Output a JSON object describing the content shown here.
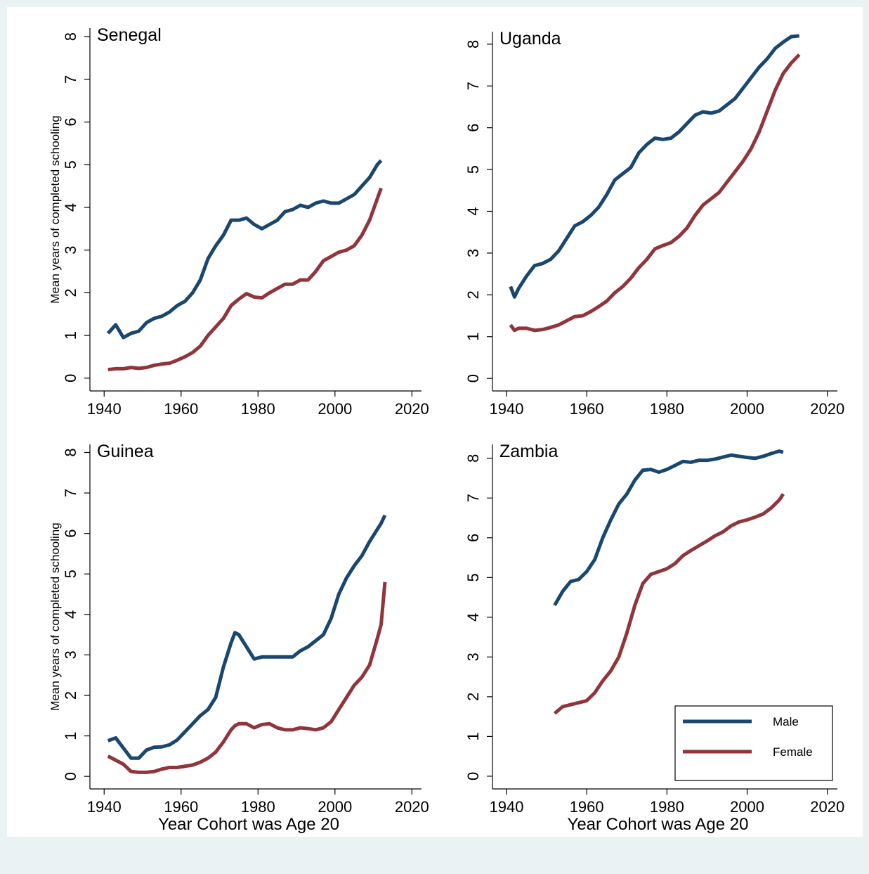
{
  "chart_data": [
    {
      "type": "line",
      "title": "Senegal",
      "ylabel": "Mean years of completed schooling",
      "x": [
        1941,
        1943,
        1945,
        1947,
        1949,
        1951,
        1953,
        1955,
        1957,
        1959,
        1961,
        1963,
        1965,
        1967,
        1969,
        1971,
        1973,
        1975,
        1977,
        1979,
        1981,
        1983,
        1985,
        1987,
        1989,
        1991,
        1993,
        1995,
        1997,
        1999,
        2001,
        2003,
        2005,
        2007,
        2009,
        2011,
        2012
      ],
      "series": [
        {
          "color": "#1a476f",
          "values": [
            1.05,
            1.25,
            0.95,
            1.05,
            1.1,
            1.3,
            1.4,
            1.45,
            1.55,
            1.7,
            1.8,
            2.0,
            2.3,
            2.8,
            3.1,
            3.35,
            3.7,
            3.7,
            3.75,
            3.6,
            3.5,
            3.6,
            3.7,
            3.9,
            3.95,
            4.05,
            4.0,
            4.1,
            4.15,
            4.1,
            4.1,
            4.2,
            4.3,
            4.5,
            4.7,
            5.0,
            5.1
          ]
        },
        {
          "color": "#90353b",
          "values": [
            0.2,
            0.22,
            0.22,
            0.25,
            0.23,
            0.25,
            0.3,
            0.33,
            0.35,
            0.42,
            0.5,
            0.6,
            0.75,
            1.0,
            1.2,
            1.4,
            1.7,
            1.85,
            1.98,
            1.9,
            1.88,
            2.0,
            2.1,
            2.2,
            2.2,
            2.3,
            2.3,
            2.5,
            2.75,
            2.85,
            2.95,
            3.0,
            3.1,
            3.35,
            3.7,
            4.2,
            4.45
          ]
        }
      ],
      "xlim": [
        1936.3,
        2022.5
      ],
      "xticks": [
        1940,
        1960,
        1980,
        2000,
        2020
      ],
      "ylim": [
        -0.3,
        8.2
      ],
      "yticks": [
        0,
        1,
        2,
        3,
        4,
        5,
        6,
        7,
        8
      ]
    },
    {
      "type": "line",
      "title": "Uganda",
      "x": [
        1941,
        1942,
        1943,
        1945,
        1947,
        1949,
        1951,
        1953,
        1955,
        1957,
        1959,
        1961,
        1963,
        1965,
        1967,
        1969,
        1971,
        1973,
        1975,
        1977,
        1979,
        1981,
        1983,
        1985,
        1987,
        1989,
        1991,
        1993,
        1995,
        1997,
        1999,
        2001,
        2003,
        2005,
        2007,
        2009,
        2011,
        2013
      ],
      "series": [
        {
          "color": "#1a476f",
          "values": [
            2.2,
            1.95,
            2.15,
            2.45,
            2.7,
            2.75,
            2.85,
            3.05,
            3.35,
            3.65,
            3.75,
            3.9,
            4.1,
            4.4,
            4.75,
            4.9,
            5.05,
            5.4,
            5.6,
            5.75,
            5.72,
            5.75,
            5.9,
            6.1,
            6.3,
            6.38,
            6.35,
            6.4,
            6.55,
            6.7,
            6.95,
            7.2,
            7.45,
            7.65,
            7.9,
            8.05,
            8.18,
            8.2
          ]
        },
        {
          "color": "#90353b",
          "values": [
            1.28,
            1.15,
            1.2,
            1.2,
            1.15,
            1.17,
            1.22,
            1.28,
            1.38,
            1.48,
            1.5,
            1.6,
            1.72,
            1.85,
            2.05,
            2.2,
            2.4,
            2.65,
            2.85,
            3.1,
            3.18,
            3.25,
            3.4,
            3.6,
            3.9,
            4.15,
            4.3,
            4.45,
            4.7,
            4.95,
            5.2,
            5.5,
            5.9,
            6.4,
            6.9,
            7.3,
            7.55,
            7.75
          ]
        }
      ],
      "xlim": [
        1936.5,
        2022.5
      ],
      "xticks": [
        1940,
        1960,
        1980,
        2000,
        2020
      ],
      "ylim": [
        -0.3,
        8.3
      ],
      "yticks": [
        0,
        1,
        2,
        3,
        4,
        5,
        6,
        7,
        8
      ]
    },
    {
      "type": "line",
      "title": "Guinea",
      "ylabel": "Mean years of completed schooling",
      "xlabel": "Year Cohort was Age 20",
      "x": [
        1941,
        1943,
        1945,
        1947,
        1949,
        1951,
        1953,
        1955,
        1957,
        1959,
        1961,
        1963,
        1965,
        1967,
        1969,
        1971,
        1973,
        1974,
        1975,
        1977,
        1979,
        1981,
        1983,
        1985,
        1987,
        1989,
        1991,
        1993,
        1995,
        1997,
        1999,
        2001,
        2003,
        2005,
        2007,
        2009,
        2011,
        2012,
        2013
      ],
      "series": [
        {
          "color": "#1a476f",
          "values": [
            0.88,
            0.95,
            0.7,
            0.45,
            0.45,
            0.65,
            0.72,
            0.73,
            0.78,
            0.9,
            1.1,
            1.3,
            1.5,
            1.65,
            1.95,
            2.7,
            3.3,
            3.55,
            3.5,
            3.2,
            2.9,
            2.95,
            2.95,
            2.95,
            2.95,
            2.95,
            3.1,
            3.2,
            3.35,
            3.5,
            3.9,
            4.5,
            4.9,
            5.2,
            5.45,
            5.8,
            6.1,
            6.25,
            6.45
          ]
        },
        {
          "color": "#90353b",
          "values": [
            0.5,
            0.4,
            0.3,
            0.12,
            0.1,
            0.1,
            0.12,
            0.18,
            0.22,
            0.22,
            0.25,
            0.28,
            0.35,
            0.45,
            0.6,
            0.85,
            1.15,
            1.25,
            1.3,
            1.3,
            1.2,
            1.28,
            1.3,
            1.2,
            1.15,
            1.15,
            1.2,
            1.18,
            1.15,
            1.2,
            1.35,
            1.65,
            1.95,
            2.25,
            2.45,
            2.75,
            3.4,
            3.75,
            4.8
          ]
        }
      ],
      "xlim": [
        1936.3,
        2022.5
      ],
      "xticks": [
        1940,
        1960,
        1980,
        2000,
        2020
      ],
      "ylim": [
        -0.31,
        8.2
      ],
      "yticks": [
        0,
        1,
        2,
        3,
        4,
        5,
        6,
        7,
        8
      ]
    },
    {
      "type": "line",
      "title": "Zambia",
      "xlabel": "Year Cohort was Age 20",
      "legend": "lower right",
      "x": [
        1952,
        1954,
        1956,
        1958,
        1960,
        1962,
        1964,
        1966,
        1968,
        1970,
        1972,
        1974,
        1976,
        1978,
        1980,
        1982,
        1984,
        1986,
        1988,
        1990,
        1992,
        1994,
        1996,
        1998,
        2000,
        2002,
        2004,
        2006,
        2008,
        2009
      ],
      "series": [
        {
          "name": "Male",
          "color": "#1a476f",
          "values": [
            4.3,
            4.65,
            4.9,
            4.95,
            5.15,
            5.45,
            6.0,
            6.45,
            6.85,
            7.1,
            7.45,
            7.7,
            7.72,
            7.65,
            7.72,
            7.82,
            7.92,
            7.9,
            7.95,
            7.95,
            7.98,
            8.03,
            8.08,
            8.05,
            8.02,
            8.0,
            8.05,
            8.12,
            8.18,
            8.15
          ]
        },
        {
          "name": "Female",
          "color": "#90353b",
          "values": [
            1.58,
            1.75,
            1.8,
            1.85,
            1.9,
            2.1,
            2.4,
            2.65,
            3.0,
            3.6,
            4.3,
            4.85,
            5.08,
            5.15,
            5.22,
            5.35,
            5.55,
            5.68,
            5.8,
            5.92,
            6.05,
            6.15,
            6.3,
            6.4,
            6.45,
            6.52,
            6.6,
            6.75,
            6.95,
            7.1
          ]
        }
      ],
      "xlim": [
        1936.5,
        2022.5
      ],
      "xticks": [
        1940,
        1960,
        1980,
        2000,
        2020
      ],
      "ylim": [
        -0.32,
        8.35
      ],
      "yticks": [
        0,
        1,
        2,
        3,
        4,
        5,
        6,
        7,
        8
      ]
    }
  ]
}
